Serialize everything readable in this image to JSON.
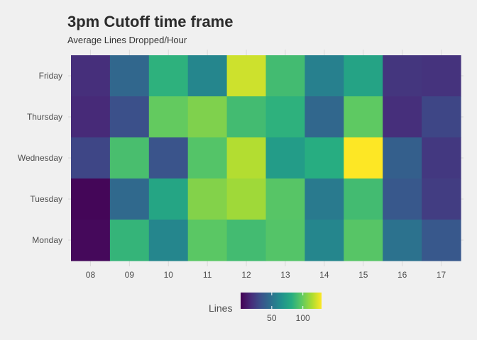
{
  "chart_data": {
    "type": "heatmap",
    "title": "3pm Cutoff time frame",
    "subtitle": "Average Lines Dropped/Hour",
    "xlabel": "",
    "ylabel": "",
    "x_categories": [
      "08",
      "09",
      "10",
      "11",
      "12",
      "13",
      "14",
      "15",
      "16",
      "17"
    ],
    "y_categories": [
      "Friday",
      "Thursday",
      "Wednesday",
      "Tuesday",
      "Monday"
    ],
    "values": [
      [
        18,
        44,
        84,
        60,
        121,
        90,
        57,
        76,
        21,
        20
      ],
      [
        16,
        32,
        99,
        105,
        90,
        84,
        44,
        98,
        18,
        28
      ],
      [
        28,
        92,
        34,
        95,
        116,
        72,
        82,
        130,
        40,
        22
      ],
      [
        2,
        45,
        77,
        106,
        112,
        96,
        54,
        90,
        36,
        24
      ],
      [
        3,
        86,
        60,
        97,
        90,
        95,
        60,
        96,
        50,
        36
      ]
    ],
    "color_scale": "viridis",
    "value_range": [
      0,
      130
    ],
    "grid": true,
    "legend": {
      "title": "Lines",
      "position": "bottom",
      "ticks": [
        "50",
        "100"
      ]
    }
  }
}
